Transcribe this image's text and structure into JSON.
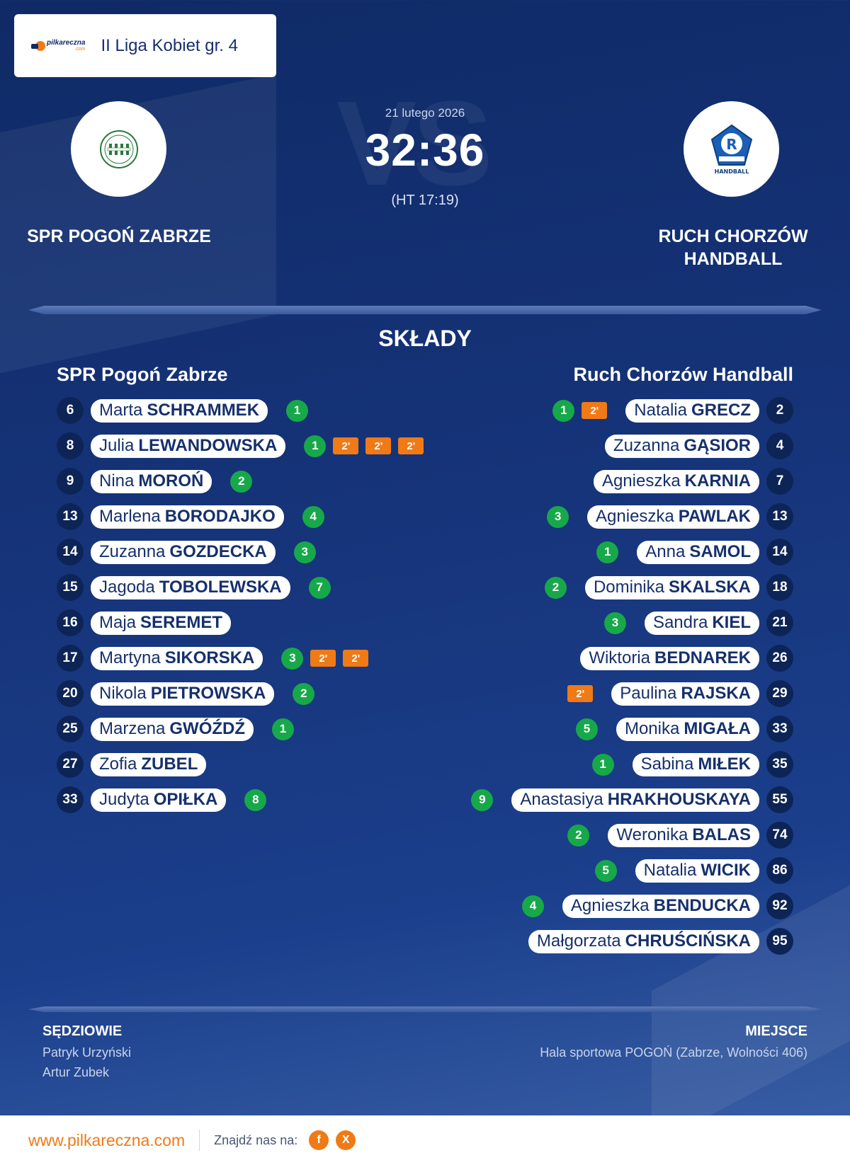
{
  "league": {
    "brand_top": "pilkareczna",
    "brand_bottom": ".com",
    "name": "II Liga Kobiet gr. 4"
  },
  "match": {
    "vs_text": "VS",
    "date": "21 lutego 2026",
    "score": "32:36",
    "half_time": "(HT 17:19)"
  },
  "home": {
    "name": "SPR POGOŃ ZABRZE",
    "roster_title": "SPR Pogoń Zabrze",
    "players": [
      {
        "num": "6",
        "first": "Marta",
        "last": "SCHRAMMEK",
        "goals": "1",
        "susp": []
      },
      {
        "num": "8",
        "first": "Julia",
        "last": "LEWANDOWSKA",
        "goals": "1",
        "susp": [
          "2'",
          "2'",
          "2'"
        ]
      },
      {
        "num": "9",
        "first": "Nina",
        "last": "MOROŃ",
        "goals": "2",
        "susp": []
      },
      {
        "num": "13",
        "first": "Marlena",
        "last": "BORODAJKO",
        "goals": "4",
        "susp": []
      },
      {
        "num": "14",
        "first": "Zuzanna",
        "last": "GOZDECKA",
        "goals": "3",
        "susp": []
      },
      {
        "num": "15",
        "first": "Jagoda",
        "last": "TOBOLEWSKA",
        "goals": "7",
        "susp": []
      },
      {
        "num": "16",
        "first": "Maja",
        "last": "SEREMET",
        "goals": "",
        "susp": []
      },
      {
        "num": "17",
        "first": "Martyna",
        "last": "SIKORSKA",
        "goals": "3",
        "susp": [
          "2'",
          "2'"
        ]
      },
      {
        "num": "20",
        "first": "Nikola",
        "last": "PIETROWSKA",
        "goals": "2",
        "susp": []
      },
      {
        "num": "25",
        "first": "Marzena",
        "last": "GWÓŹDŹ",
        "goals": "1",
        "susp": []
      },
      {
        "num": "27",
        "first": "Zofia",
        "last": "ZUBEL",
        "goals": "",
        "susp": []
      },
      {
        "num": "33",
        "first": "Judyta",
        "last": "OPIŁKA",
        "goals": "8",
        "susp": []
      }
    ]
  },
  "away": {
    "name_line1": "RUCH CHORZÓW",
    "name_line2": "HANDBALL",
    "crest_text": "HANDBALL",
    "roster_title": "Ruch Chorzów Handball",
    "players": [
      {
        "num": "2",
        "first": "Natalia",
        "last": "GRECZ",
        "goals": "1",
        "susp": [
          "2'"
        ]
      },
      {
        "num": "4",
        "first": "Zuzanna",
        "last": "GĄSIOR",
        "goals": "",
        "susp": []
      },
      {
        "num": "7",
        "first": "Agnieszka",
        "last": "KARNIA",
        "goals": "",
        "susp": []
      },
      {
        "num": "13",
        "first": "Agnieszka",
        "last": "PAWLAK",
        "goals": "3",
        "susp": []
      },
      {
        "num": "14",
        "first": "Anna",
        "last": "SAMOL",
        "goals": "1",
        "susp": []
      },
      {
        "num": "18",
        "first": "Dominika",
        "last": "SKALSKA",
        "goals": "2",
        "susp": []
      },
      {
        "num": "21",
        "first": "Sandra",
        "last": "KIEL",
        "goals": "3",
        "susp": []
      },
      {
        "num": "26",
        "first": "Wiktoria",
        "last": "BEDNAREK",
        "goals": "",
        "susp": []
      },
      {
        "num": "29",
        "first": "Paulina",
        "last": "RAJSKA",
        "goals": "",
        "susp": [
          "2'"
        ]
      },
      {
        "num": "33",
        "first": "Monika",
        "last": "MIGAŁA",
        "goals": "5",
        "susp": []
      },
      {
        "num": "35",
        "first": "Sabina",
        "last": "MIŁEK",
        "goals": "1",
        "susp": []
      },
      {
        "num": "55",
        "first": "Anastasiya",
        "last": "HRAKHOUSKAYA",
        "goals": "9",
        "susp": []
      },
      {
        "num": "74",
        "first": "Weronika",
        "last": "BALAS",
        "goals": "2",
        "susp": []
      },
      {
        "num": "86",
        "first": "Natalia",
        "last": "WICIK",
        "goals": "5",
        "susp": []
      },
      {
        "num": "92",
        "first": "Agnieszka",
        "last": "BENDUCKA",
        "goals": "4",
        "susp": []
      },
      {
        "num": "95",
        "first": "Małgorzata",
        "last": "CHRUŚCIŃSKA",
        "goals": "",
        "susp": []
      }
    ]
  },
  "section_title": "SKŁADY",
  "referees": {
    "label": "SĘDZIOWIE",
    "names": [
      "Patryk Urzyński",
      "Artur Zubek"
    ]
  },
  "venue": {
    "label": "MIEJSCE",
    "text": "Hala sportowa POGOŃ (Zabrze, Wolności 406)"
  },
  "footer": {
    "site": "www.pilkareczna.com",
    "find_us": "Znajdź nas na:",
    "social": [
      "f",
      "X"
    ]
  },
  "colors": {
    "goal": "#17a84a",
    "suspension": "#f07a16",
    "background": "#16347a",
    "accent": "#f07a16"
  }
}
